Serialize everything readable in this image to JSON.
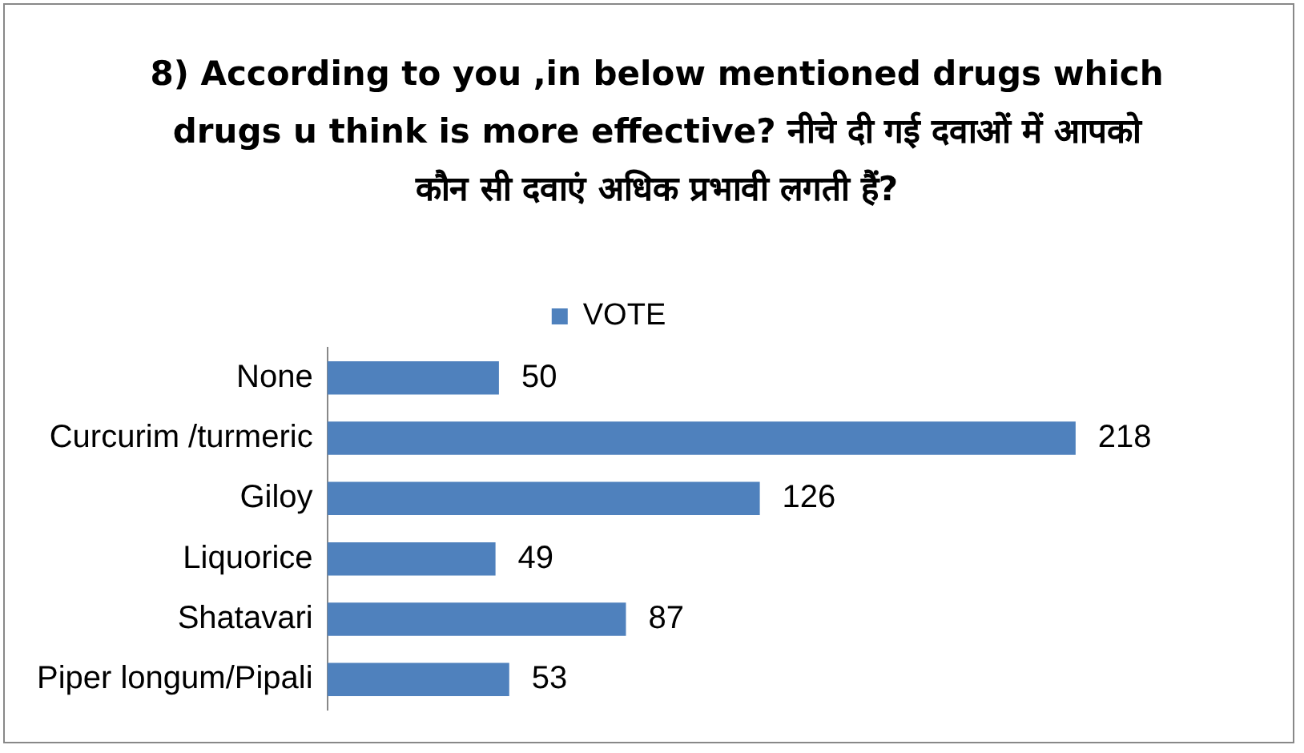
{
  "chart_data": {
    "type": "bar",
    "orientation": "horizontal",
    "title": "8) According to you ,in below mentioned drugs which drugs u think is more effective? नीचे दी गई दवाओं में आपको कौन सी दवाएं अधिक प्रभावी लगती हैं?",
    "categories": [
      "None",
      "Curcurim /turmeric",
      "Giloy",
      "Liquorice",
      "Shatavari",
      "Piper longum/Pipali"
    ],
    "series": [
      {
        "name": "VOTE",
        "color": "#4f81bd",
        "values": [
          50,
          218,
          126,
          49,
          87,
          53
        ]
      }
    ],
    "data_labels": true,
    "legend": "top",
    "grid": false
  }
}
